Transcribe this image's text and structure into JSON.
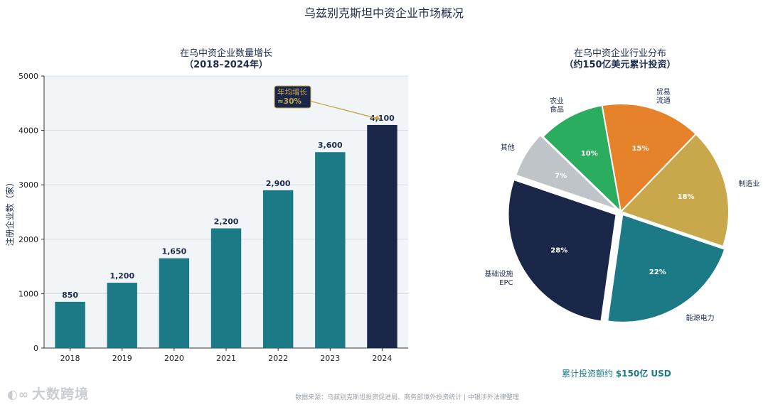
{
  "page": {
    "title": "乌兹别克斯坦中资企业市场概况",
    "source": "数据来源：乌兹别克斯坦投资促进局、商务部境外投资统计 | 中银涉外法律整理",
    "watermark": "大数跨境",
    "total_note_prefix": "累计投资额约 ",
    "total_note_value": "$150亿 USD"
  },
  "colors": {
    "teal": "#1c7a87",
    "navy": "#1b2749",
    "gold": "#c9a84c",
    "orange": "#e6832a",
    "green": "#2aad5f",
    "gray": "#bfc4c8",
    "plot_bg": "#f2f5f7"
  },
  "chart_data": [
    {
      "type": "bar",
      "title": "在乌中资企业数量增长",
      "subtitle": "（2018–2024年）",
      "xlabel": "",
      "ylabel": "注册企业数（家）",
      "categories": [
        "2018",
        "2019",
        "2020",
        "2021",
        "2022",
        "2023",
        "2024"
      ],
      "values": [
        850,
        1200,
        1650,
        2200,
        2900,
        3600,
        4100
      ],
      "data_labels": [
        "850",
        "1,200",
        "1,650",
        "2,200",
        "2,900",
        "3,600",
        "4,100"
      ],
      "ylim": [
        0,
        5000
      ],
      "yticks": [
        0,
        1000,
        2000,
        3000,
        4000,
        5000
      ],
      "grid": true,
      "highlight_index": 6,
      "annotation": {
        "line1": "年均增长",
        "line2": "≈30%",
        "target_category": "2024"
      }
    },
    {
      "type": "pie",
      "title": "在乌中资企业行业分布",
      "subtitle": "（约150亿美元累计投资）",
      "start_angle_deg": 100,
      "direction": "counterclockwise",
      "slices": [
        {
          "label": [
            "农业",
            "食品"
          ],
          "value": 10,
          "pct_label": "10%",
          "color": "#2aad5f",
          "explode": 0
        },
        {
          "label": [
            "其他"
          ],
          "value": 7,
          "pct_label": "7%",
          "color": "#bfc4c8",
          "explode": 0.03
        },
        {
          "label": [
            "基础设施",
            "EPC"
          ],
          "value": 28,
          "pct_label": "28%",
          "color": "#1b2749",
          "explode": 0.05
        },
        {
          "label": [
            "能源电力"
          ],
          "value": 22,
          "pct_label": "22%",
          "color": "#1c7a87",
          "explode": 0.03
        },
        {
          "label": [
            "制造业"
          ],
          "value": 18,
          "pct_label": "18%",
          "color": "#c9a84c",
          "explode": 0
        },
        {
          "label": [
            "贸易",
            "流通"
          ],
          "value": 15,
          "pct_label": "15%",
          "color": "#e6832a",
          "explode": 0
        }
      ]
    }
  ]
}
